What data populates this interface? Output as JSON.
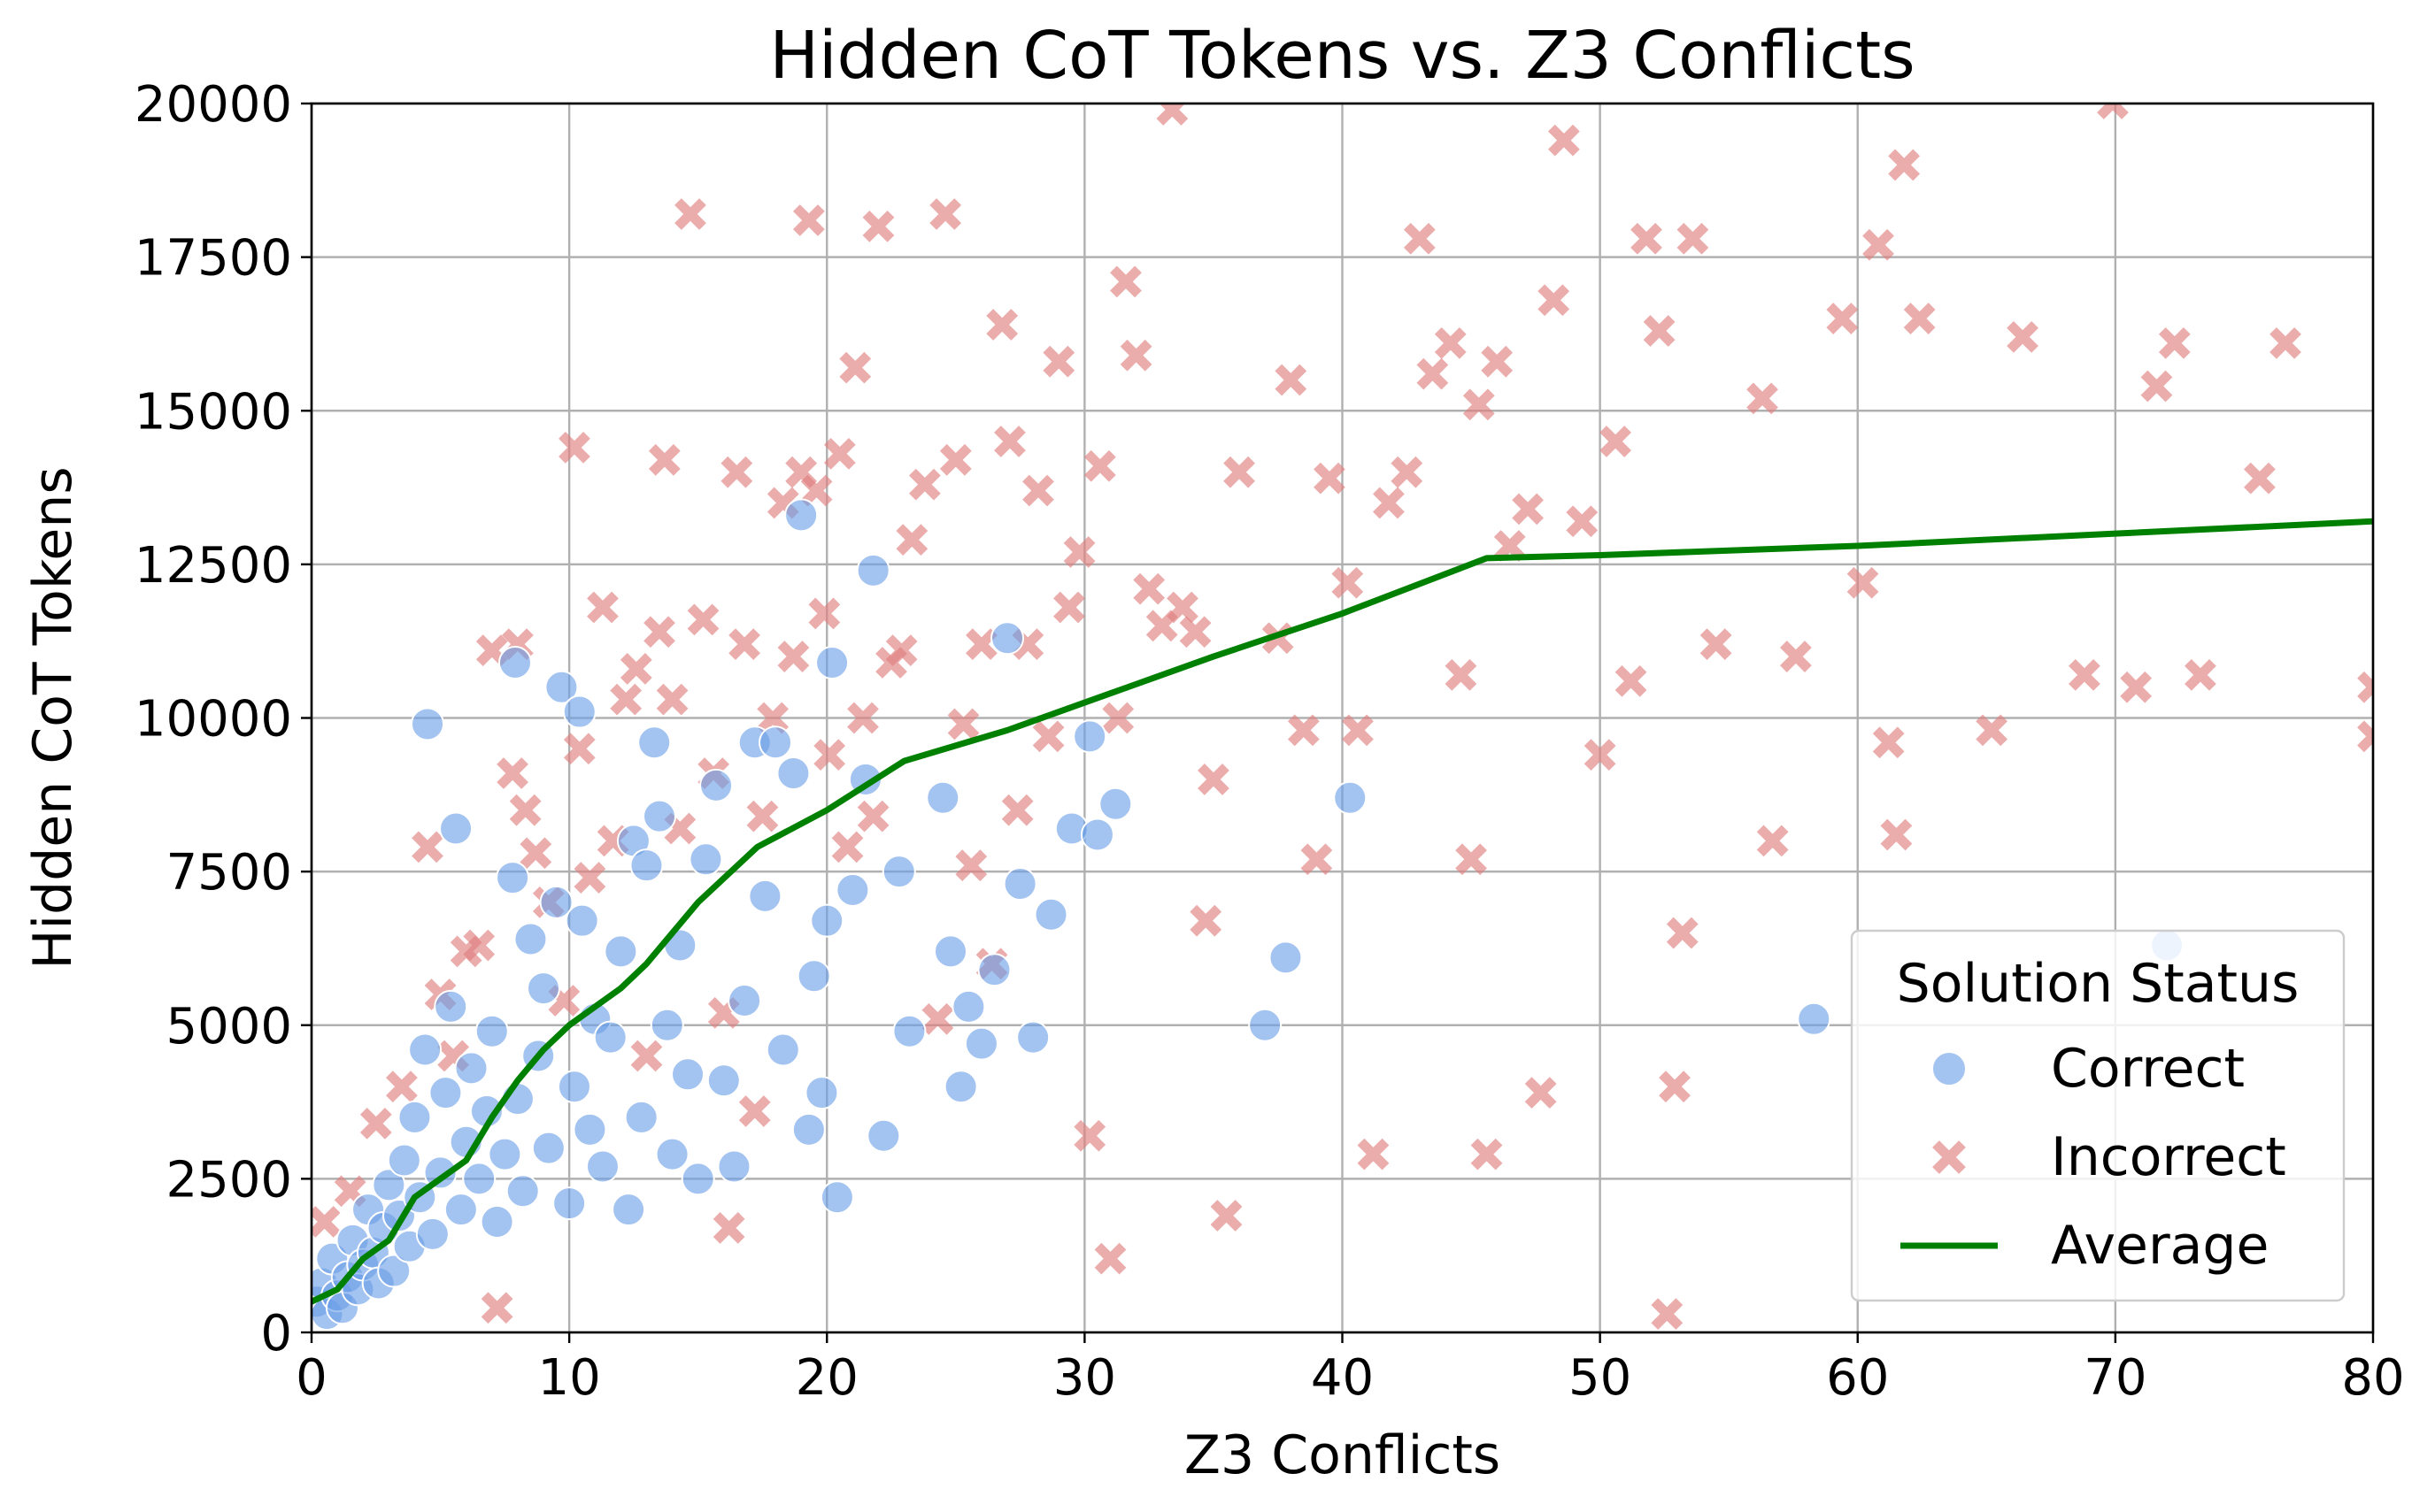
{
  "chart_data": {
    "type": "scatter",
    "title": "Hidden CoT Tokens vs. Z3 Conflicts",
    "xlabel": "Z3 Conflicts",
    "ylabel": "Hidden CoT Tokens",
    "xlim": [
      0,
      80
    ],
    "ylim": [
      0,
      20000
    ],
    "x_ticks": [
      "0",
      "10",
      "20",
      "30",
      "40",
      "50",
      "60",
      "70",
      "80"
    ],
    "y_ticks": [
      "0",
      "2500",
      "5000",
      "7500",
      "10000",
      "12500",
      "15000",
      "17500",
      "20000"
    ],
    "grid": true,
    "legend": {
      "title": "Solution Status",
      "placement": "lower-right"
    },
    "colors": {
      "correct": "#6a9ee6",
      "incorrect": "#e08080",
      "average": "#008000"
    },
    "series": [
      {
        "name": "Correct",
        "marker": "circle",
        "points": [
          [
            0.2,
            500
          ],
          [
            0.4,
            800
          ],
          [
            0.6,
            300
          ],
          [
            0.8,
            1200
          ],
          [
            1.0,
            600
          ],
          [
            1.2,
            400
          ],
          [
            1.4,
            900
          ],
          [
            1.6,
            1500
          ],
          [
            1.8,
            700
          ],
          [
            2.0,
            1100
          ],
          [
            2.2,
            2000
          ],
          [
            2.4,
            1300
          ],
          [
            2.6,
            800
          ],
          [
            2.8,
            1700
          ],
          [
            3.0,
            2400
          ],
          [
            3.2,
            1000
          ],
          [
            3.4,
            1900
          ],
          [
            3.6,
            2800
          ],
          [
            3.8,
            1400
          ],
          [
            4.0,
            3500
          ],
          [
            4.2,
            2200
          ],
          [
            4.4,
            4600
          ],
          [
            4.5,
            9900
          ],
          [
            4.7,
            1600
          ],
          [
            5.0,
            2600
          ],
          [
            5.2,
            3900
          ],
          [
            5.4,
            5300
          ],
          [
            5.6,
            8200
          ],
          [
            5.8,
            2000
          ],
          [
            6.0,
            3100
          ],
          [
            6.2,
            4300
          ],
          [
            6.5,
            2500
          ],
          [
            6.8,
            3600
          ],
          [
            7.0,
            4900
          ],
          [
            7.2,
            1800
          ],
          [
            7.5,
            2900
          ],
          [
            7.8,
            7400
          ],
          [
            7.9,
            10900
          ],
          [
            8.0,
            3800
          ],
          [
            8.2,
            2300
          ],
          [
            8.5,
            6400
          ],
          [
            8.8,
            4500
          ],
          [
            9.0,
            5600
          ],
          [
            9.2,
            3000
          ],
          [
            9.5,
            7000
          ],
          [
            9.7,
            10500
          ],
          [
            10.0,
            2100
          ],
          [
            10.2,
            4000
          ],
          [
            10.4,
            10100
          ],
          [
            10.5,
            6700
          ],
          [
            10.8,
            3300
          ],
          [
            11.0,
            5100
          ],
          [
            11.3,
            2700
          ],
          [
            11.6,
            4800
          ],
          [
            12.0,
            6200
          ],
          [
            12.3,
            2000
          ],
          [
            12.5,
            8000
          ],
          [
            12.8,
            3500
          ],
          [
            13.0,
            7600
          ],
          [
            13.3,
            9600
          ],
          [
            13.5,
            8400
          ],
          [
            13.8,
            5000
          ],
          [
            14.0,
            2900
          ],
          [
            14.3,
            6300
          ],
          [
            14.6,
            4200
          ],
          [
            15.0,
            2500
          ],
          [
            15.3,
            7700
          ],
          [
            15.7,
            8900
          ],
          [
            16.0,
            4100
          ],
          [
            16.4,
            2700
          ],
          [
            16.8,
            5400
          ],
          [
            17.2,
            9600
          ],
          [
            17.6,
            7100
          ],
          [
            18.0,
            9600
          ],
          [
            18.3,
            4600
          ],
          [
            18.7,
            9100
          ],
          [
            19.0,
            13300
          ],
          [
            19.3,
            3300
          ],
          [
            19.5,
            5800
          ],
          [
            19.8,
            3900
          ],
          [
            20.0,
            6700
          ],
          [
            20.2,
            10900
          ],
          [
            20.4,
            2200
          ],
          [
            21.0,
            7200
          ],
          [
            21.5,
            9000
          ],
          [
            21.8,
            12400
          ],
          [
            22.2,
            3200
          ],
          [
            22.8,
            7500
          ],
          [
            23.2,
            4900
          ],
          [
            24.5,
            8700
          ],
          [
            24.8,
            6200
          ],
          [
            25.2,
            4000
          ],
          [
            25.5,
            5300
          ],
          [
            26.0,
            4700
          ],
          [
            26.5,
            5900
          ],
          [
            27.0,
            11300
          ],
          [
            27.5,
            7300
          ],
          [
            28.0,
            4800
          ],
          [
            28.7,
            6800
          ],
          [
            29.5,
            8200
          ],
          [
            30.2,
            9700
          ],
          [
            30.5,
            8100
          ],
          [
            31.2,
            8600
          ],
          [
            37.0,
            5000
          ],
          [
            37.8,
            6100
          ],
          [
            40.3,
            8700
          ],
          [
            58.3,
            5100
          ],
          [
            72.0,
            6300
          ]
        ]
      },
      {
        "name": "Incorrect",
        "marker": "x",
        "points": [
          [
            0.5,
            1800
          ],
          [
            1.5,
            2300
          ],
          [
            2.5,
            3400
          ],
          [
            3.5,
            4000
          ],
          [
            4.5,
            7900
          ],
          [
            5.0,
            5500
          ],
          [
            5.5,
            4500
          ],
          [
            6.0,
            6200
          ],
          [
            6.5,
            6300
          ],
          [
            7.0,
            11100
          ],
          [
            7.2,
            400
          ],
          [
            7.8,
            9100
          ],
          [
            8.0,
            11200
          ],
          [
            8.3,
            8500
          ],
          [
            8.7,
            7800
          ],
          [
            9.2,
            7000
          ],
          [
            9.8,
            5400
          ],
          [
            10.2,
            14400
          ],
          [
            10.4,
            9500
          ],
          [
            10.8,
            7400
          ],
          [
            11.3,
            11800
          ],
          [
            11.7,
            8000
          ],
          [
            12.2,
            10300
          ],
          [
            12.6,
            10800
          ],
          [
            13.0,
            4500
          ],
          [
            13.5,
            11400
          ],
          [
            13.7,
            14200
          ],
          [
            14.0,
            10300
          ],
          [
            14.3,
            8200
          ],
          [
            14.7,
            18200
          ],
          [
            15.2,
            11600
          ],
          [
            15.6,
            9100
          ],
          [
            16.0,
            5200
          ],
          [
            16.2,
            1700
          ],
          [
            16.5,
            14000
          ],
          [
            16.8,
            11200
          ],
          [
            17.2,
            3600
          ],
          [
            17.5,
            8400
          ],
          [
            17.9,
            10000
          ],
          [
            18.3,
            13500
          ],
          [
            18.7,
            11000
          ],
          [
            19.0,
            14000
          ],
          [
            19.3,
            18100
          ],
          [
            19.6,
            13700
          ],
          [
            19.9,
            11700
          ],
          [
            20.1,
            9400
          ],
          [
            20.5,
            14300
          ],
          [
            20.8,
            7900
          ],
          [
            21.1,
            15700
          ],
          [
            21.4,
            10000
          ],
          [
            21.8,
            8400
          ],
          [
            22.0,
            18000
          ],
          [
            22.5,
            10900
          ],
          [
            22.9,
            11100
          ],
          [
            23.3,
            12900
          ],
          [
            23.8,
            13800
          ],
          [
            24.3,
            5100
          ],
          [
            24.6,
            18200
          ],
          [
            25.0,
            14200
          ],
          [
            25.3,
            9900
          ],
          [
            25.6,
            7600
          ],
          [
            26.0,
            11200
          ],
          [
            26.4,
            6000
          ],
          [
            26.8,
            16400
          ],
          [
            27.1,
            14500
          ],
          [
            27.4,
            8500
          ],
          [
            27.8,
            11200
          ],
          [
            28.2,
            13700
          ],
          [
            28.6,
            9700
          ],
          [
            29.0,
            15800
          ],
          [
            29.4,
            11800
          ],
          [
            29.8,
            12700
          ],
          [
            30.2,
            3200
          ],
          [
            30.6,
            14100
          ],
          [
            31.0,
            1200
          ],
          [
            31.3,
            10000
          ],
          [
            31.6,
            17100
          ],
          [
            32.0,
            15900
          ],
          [
            32.5,
            12100
          ],
          [
            33.0,
            11500
          ],
          [
            33.4,
            19900
          ],
          [
            33.8,
            11800
          ],
          [
            34.3,
            11400
          ],
          [
            34.7,
            6700
          ],
          [
            35.0,
            9000
          ],
          [
            35.5,
            1900
          ],
          [
            36.0,
            14000
          ],
          [
            37.5,
            11300
          ],
          [
            38.0,
            15500
          ],
          [
            38.5,
            9800
          ],
          [
            39.0,
            7700
          ],
          [
            39.5,
            13900
          ],
          [
            40.2,
            12200
          ],
          [
            40.6,
            9800
          ],
          [
            41.2,
            2900
          ],
          [
            41.8,
            13500
          ],
          [
            42.5,
            14000
          ],
          [
            43.0,
            17800
          ],
          [
            43.5,
            15600
          ],
          [
            44.2,
            16100
          ],
          [
            44.6,
            10700
          ],
          [
            45.0,
            7700
          ],
          [
            45.3,
            15100
          ],
          [
            45.6,
            2900
          ],
          [
            46.0,
            15800
          ],
          [
            46.5,
            12800
          ],
          [
            47.2,
            13400
          ],
          [
            47.7,
            3900
          ],
          [
            48.2,
            16800
          ],
          [
            48.6,
            19400
          ],
          [
            49.3,
            13200
          ],
          [
            50.0,
            9400
          ],
          [
            50.6,
            14500
          ],
          [
            51.2,
            10600
          ],
          [
            51.8,
            17800
          ],
          [
            52.3,
            16300
          ],
          [
            52.6,
            300
          ],
          [
            52.9,
            4000
          ],
          [
            53.2,
            6500
          ],
          [
            53.6,
            17800
          ],
          [
            54.5,
            11200
          ],
          [
            56.3,
            15200
          ],
          [
            56.7,
            8000
          ],
          [
            57.6,
            11000
          ],
          [
            59.4,
            16500
          ],
          [
            60.2,
            12200
          ],
          [
            60.8,
            17700
          ],
          [
            61.2,
            9600
          ],
          [
            61.5,
            8100
          ],
          [
            61.8,
            19000
          ],
          [
            62.4,
            16500
          ],
          [
            65.2,
            9800
          ],
          [
            66.4,
            16200
          ],
          [
            68.8,
            10700
          ],
          [
            69.9,
            20000
          ],
          [
            70.8,
            10500
          ],
          [
            71.6,
            15400
          ],
          [
            72.3,
            16100
          ],
          [
            73.3,
            10700
          ],
          [
            75.6,
            13900
          ],
          [
            76.6,
            16100
          ],
          [
            80.0,
            9700
          ],
          [
            80.0,
            10500
          ]
        ]
      },
      {
        "name": "Average",
        "marker": "line",
        "points": [
          [
            0,
            500
          ],
          [
            1,
            700
          ],
          [
            2,
            1200
          ],
          [
            3,
            1500
          ],
          [
            4,
            2200
          ],
          [
            5,
            2500
          ],
          [
            6,
            2800
          ],
          [
            7,
            3500
          ],
          [
            8,
            4100
          ],
          [
            9,
            4600
          ],
          [
            10,
            5000
          ],
          [
            12,
            5600
          ],
          [
            13,
            6000
          ],
          [
            15,
            7000
          ],
          [
            17.3,
            7900
          ],
          [
            20,
            8500
          ],
          [
            23,
            9300
          ],
          [
            27,
            9800
          ],
          [
            31,
            10400
          ],
          [
            35,
            11000
          ],
          [
            40,
            11700
          ],
          [
            45.6,
            12600
          ],
          [
            50,
            12650
          ],
          [
            60,
            12800
          ],
          [
            70,
            13000
          ],
          [
            80,
            13200
          ]
        ]
      }
    ]
  }
}
